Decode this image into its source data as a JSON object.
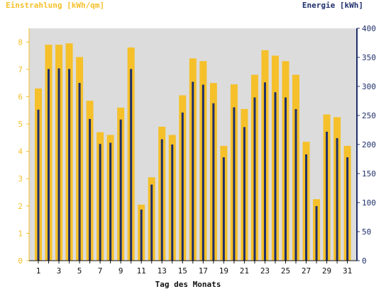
{
  "chart_data": {
    "type": "bar",
    "y_left_label": "Einstrahlung [kWh/qm]",
    "y_right_label": "Energie [kWh]",
    "xlabel": "Tag des Monats",
    "ylim_left": [
      0,
      8.5
    ],
    "ylim_right": [
      0,
      400
    ],
    "y_left_ticks": [
      0,
      1,
      2,
      3,
      4,
      5,
      6,
      7,
      8
    ],
    "y_right_ticks": [
      0,
      50,
      100,
      150,
      200,
      250,
      300,
      350,
      400
    ],
    "x_tick_labels": [
      "1",
      "3",
      "5",
      "7",
      "9",
      "11",
      "13",
      "15",
      "17",
      "19",
      "21",
      "23",
      "25",
      "27",
      "29",
      "31"
    ],
    "categories": [
      1,
      2,
      3,
      4,
      5,
      6,
      7,
      8,
      9,
      10,
      11,
      12,
      13,
      14,
      15,
      16,
      17,
      18,
      19,
      20,
      21,
      22,
      23,
      24,
      25,
      26,
      27,
      28,
      29,
      30,
      31
    ],
    "grid": false,
    "series": [
      {
        "name": "Einstrahlung [kWh/qm]",
        "axis": "left",
        "color": "#f5c02a",
        "values": [
          6.3,
          7.9,
          7.9,
          7.95,
          7.45,
          5.85,
          4.7,
          4.6,
          5.6,
          7.8,
          2.05,
          3.05,
          4.9,
          4.6,
          6.05,
          7.4,
          7.3,
          6.5,
          4.2,
          6.45,
          5.55,
          6.8,
          7.7,
          7.5,
          7.3,
          6.8,
          4.35,
          2.25,
          5.35,
          5.25,
          4.2
        ]
      },
      {
        "name": "Energie [kWh]",
        "axis": "right",
        "color": "#1f2f6b",
        "values": [
          260,
          330,
          331,
          330,
          306,
          244,
          201,
          203,
          243,
          330,
          88,
          131,
          209,
          200,
          255,
          308,
          303,
          271,
          178,
          264,
          230,
          281,
          307,
          290,
          281,
          261,
          183,
          94,
          222,
          211,
          178
        ]
      }
    ],
    "colors": {
      "plot_background": "#dcdcdc",
      "left_axis": "#f5c02a",
      "right_axis": "#1f2f6b"
    }
  }
}
